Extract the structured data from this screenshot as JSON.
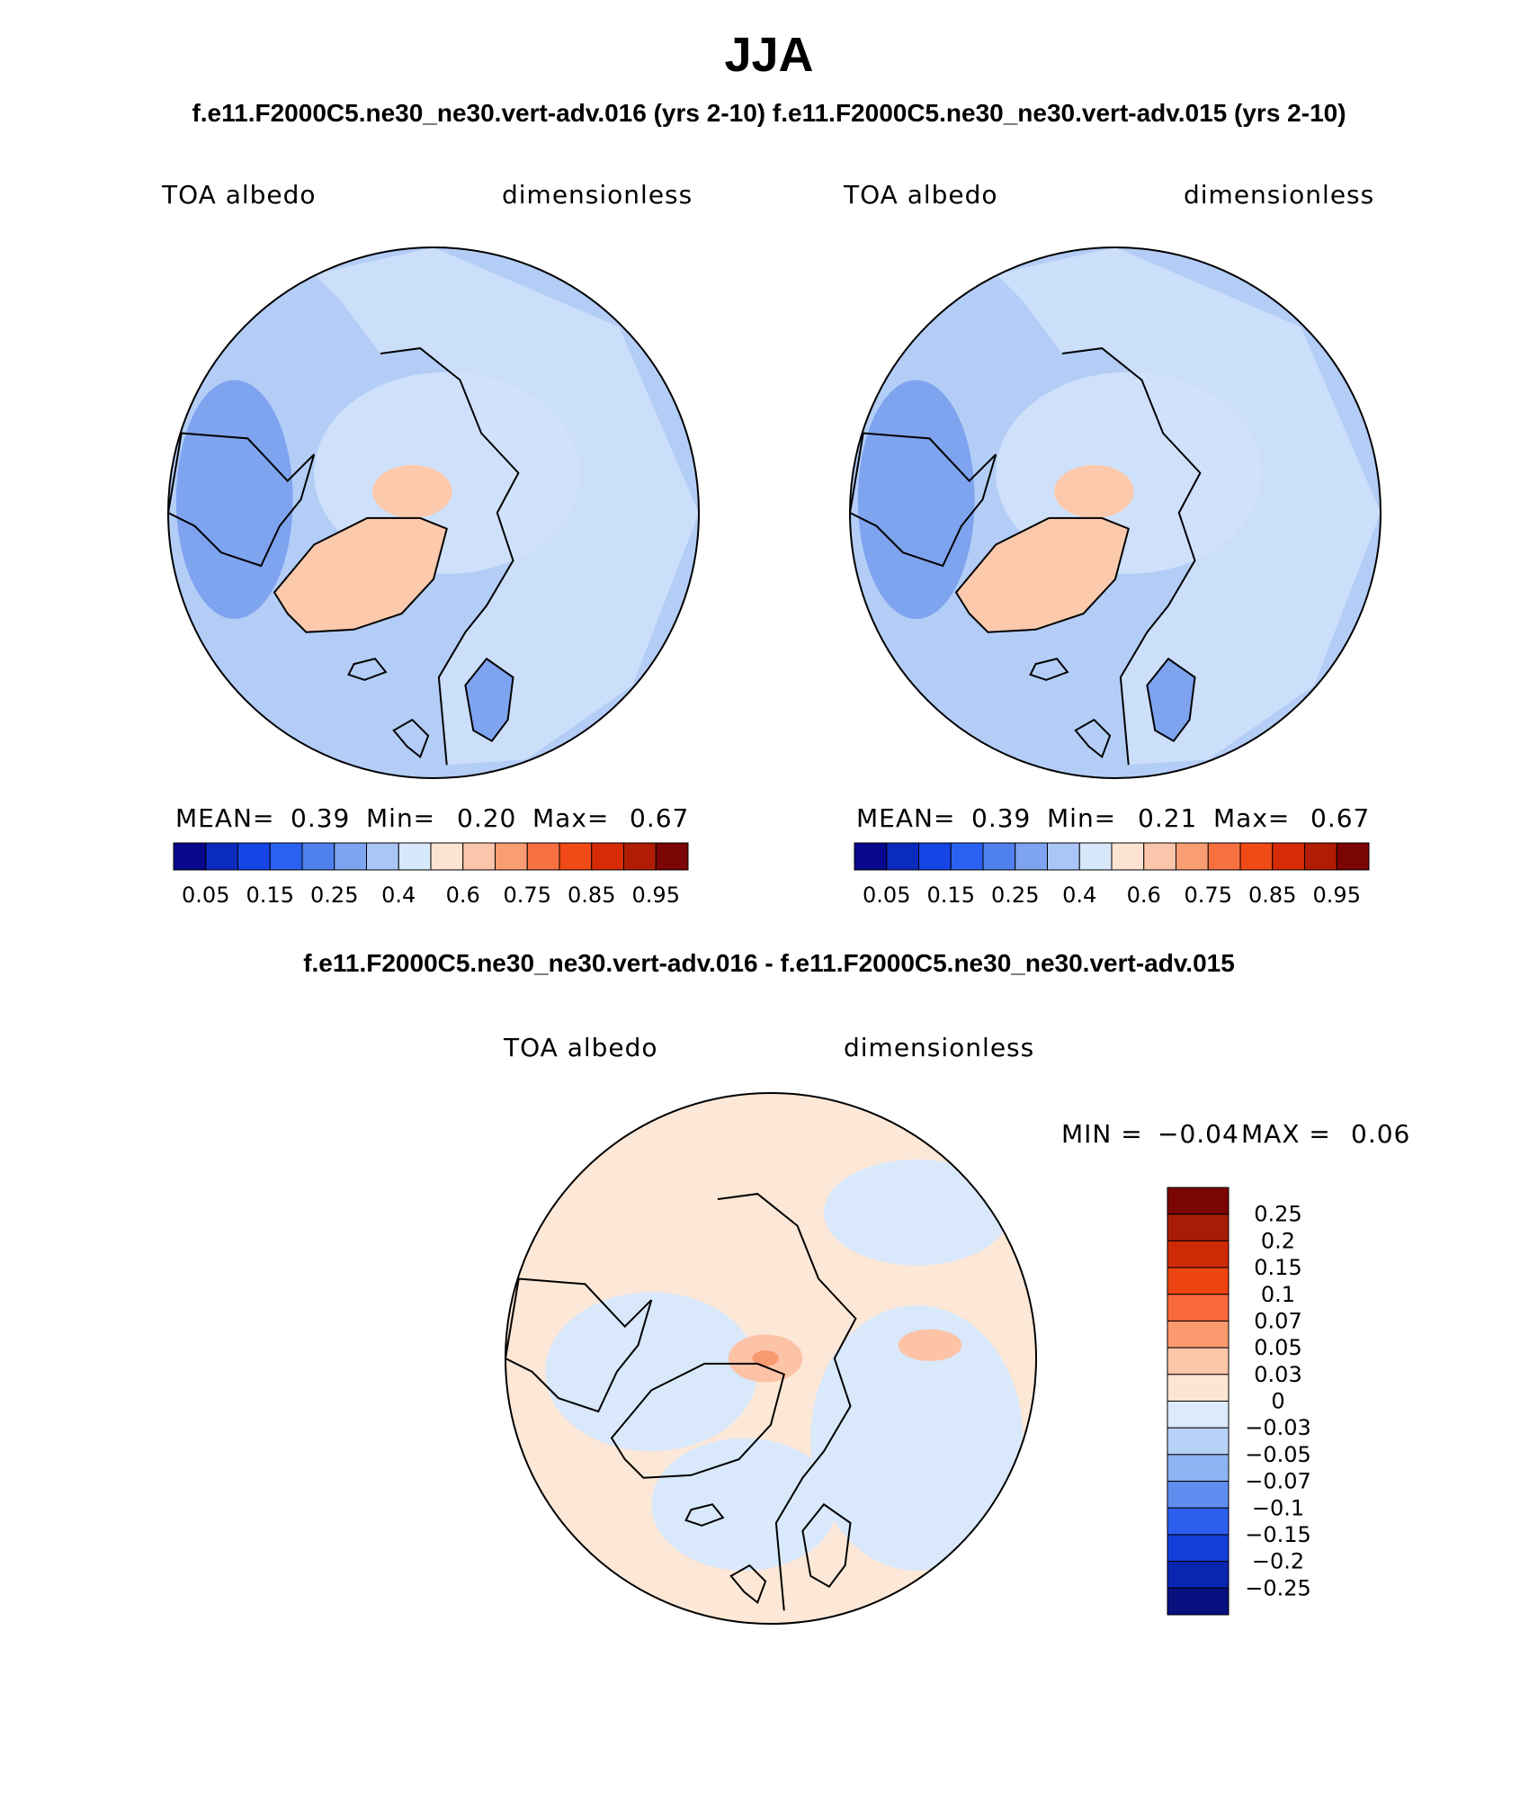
{
  "season": "JJA",
  "runs_title": "f.e11.F2000C5.ne30_ne30.vert-adv.016 (yrs 2-10)  f.e11.F2000C5.ne30_ne30.vert-adv.015 (yrs 2-10)",
  "diff_title": "f.e11.F2000C5.ne30_ne30.vert-adv.016 - f.e11.F2000C5.ne30_ne30.vert-adv.015",
  "chart_data": [
    {
      "type": "heatmap",
      "projection": "north-polar-stereographic",
      "case": "f.e11.F2000C5.ne30_ne30.vert-adv.016 (yrs 2-10)",
      "variable": "TOA albedo",
      "units": "dimensionless",
      "stats": {
        "mean_label": "MEAN=",
        "mean": "0.39",
        "min_label": "Min=",
        "min": "0.20",
        "max_label": "Max=",
        "max": "0.67"
      },
      "colorbar_ticks": [
        "0.05",
        "0.15",
        "0.25",
        "0.4",
        "0.6",
        "0.75",
        "0.85",
        "0.95"
      ]
    },
    {
      "type": "heatmap",
      "projection": "north-polar-stereographic",
      "case": "f.e11.F2000C5.ne30_ne30.vert-adv.015 (yrs 2-10)",
      "variable": "TOA albedo",
      "units": "dimensionless",
      "stats": {
        "mean_label": "MEAN=",
        "mean": "0.39",
        "min_label": "Min=",
        "min": "0.21",
        "max_label": "Max=",
        "max": "0.67"
      },
      "colorbar_ticks": [
        "0.05",
        "0.15",
        "0.25",
        "0.4",
        "0.6",
        "0.75",
        "0.85",
        "0.95"
      ]
    },
    {
      "type": "heatmap",
      "projection": "north-polar-stereographic",
      "case": "difference",
      "variable": "TOA albedo",
      "units": "dimensionless",
      "stats": {
        "min_label": "MIN =",
        "min": "−0.04",
        "max_label": "MAX =",
        "max": "0.06"
      },
      "colorbar_ticks": [
        "0.25",
        "0.2",
        "0.15",
        "0.1",
        "0.07",
        "0.05",
        "0.03",
        "0",
        "−0.03",
        "−0.05",
        "−0.07",
        "−0.1",
        "−0.15",
        "−0.2",
        "−0.25"
      ]
    }
  ],
  "palette_abs": [
    "#08088c",
    "#0b2bbf",
    "#1645e6",
    "#2a61f0",
    "#4f80ee",
    "#7ea3ef",
    "#aac6f6",
    "#d8e8fb",
    "#fde4d2",
    "#fbc5ab",
    "#f99d72",
    "#f6713f",
    "#f04a16",
    "#d72b06",
    "#b01c04",
    "#7a0504"
  ],
  "palette_diff": [
    "#7a0504",
    "#a81b04",
    "#cf2a06",
    "#ee4412",
    "#f8693a",
    "#fb9a6e",
    "#fcc6a9",
    "#fde5d3",
    "#dcebfb",
    "#b7d2f7",
    "#8fb3f2",
    "#5f8ef0",
    "#2d5fef",
    "#133fd9",
    "#0a25b0",
    "#06107f"
  ],
  "colors": {
    "ocean_abs": "#b3cdf7",
    "land_abs": "#cfe1fa",
    "greenland_abs": "#fcc9ad",
    "diff_base": "#fde7d6",
    "diff_blue": "#d9e8fb",
    "diff_mid": "#fcc3a7",
    "diff_strong": "#f99a70",
    "coast": "#000000"
  }
}
